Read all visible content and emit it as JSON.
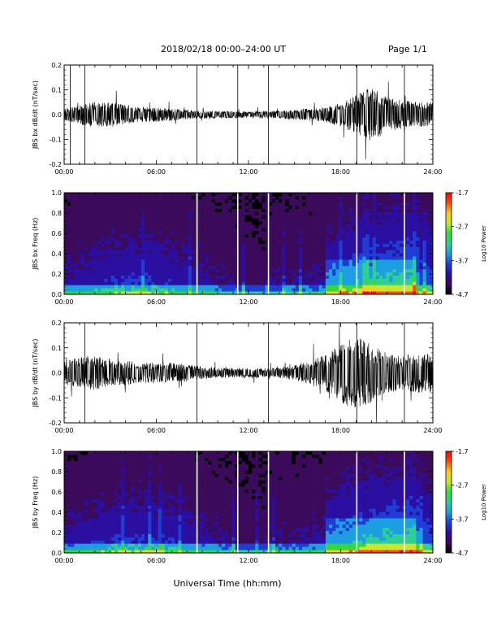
{
  "header": {
    "title": "2018/02/18  00:00–24:00 UT",
    "page": "Page 1/1"
  },
  "xaxis_title": "Universal Time (hh:mm)",
  "colors": {
    "trace": "#000000",
    "gap_lines": "#ffffff",
    "palette": [
      "#000000",
      "#3c0a5a",
      "#2a0fa0",
      "#1f3dd6",
      "#1d9ee0",
      "#2fcf96",
      "#34d83d",
      "#c8e62c",
      "#f5cc1f",
      "#ff4a10",
      "#ff0000"
    ]
  },
  "chart_data": [
    {
      "type": "line",
      "ylabel": "JBS bx dB/dt (nT/sec)",
      "xlim": [
        0,
        24
      ],
      "ylim": [
        -0.2,
        0.2
      ],
      "xticks": [
        "00:00",
        "06:00",
        "12:00",
        "18:00",
        "24:00"
      ],
      "yticks": [
        "-0.2",
        "-0.1",
        "0.0",
        "0.1",
        "0.2"
      ],
      "spikes_hours": [
        0.4,
        1.35,
        8.65,
        11.3,
        13.3,
        19.05,
        22.15
      ],
      "envelope": {
        "x": [
          0,
          1,
          2,
          3,
          4,
          5,
          6,
          7,
          8,
          9,
          10,
          11,
          12,
          13,
          14,
          15,
          16,
          17,
          18,
          19,
          20,
          21,
          22,
          23,
          24
        ],
        "amplitude": [
          0.022,
          0.04,
          0.05,
          0.05,
          0.04,
          0.03,
          0.03,
          0.025,
          0.02,
          0.015,
          0.015,
          0.015,
          0.012,
          0.015,
          0.015,
          0.02,
          0.025,
          0.03,
          0.05,
          0.08,
          0.11,
          0.07,
          0.06,
          0.05,
          0.05
        ]
      }
    },
    {
      "type": "heatmap",
      "ylabel": "JBS bx Freq (Hz)",
      "xlim": [
        0,
        24
      ],
      "ylim": [
        0,
        1.0
      ],
      "xticks": [
        "00:00",
        "06:00",
        "12:00",
        "18:00",
        "24:00"
      ],
      "yticks": [
        "0.0",
        "0.2",
        "0.4",
        "0.6",
        "0.8",
        "1.0"
      ],
      "colorbar": {
        "label": "Log10 Power",
        "ticks": [
          "-1.7",
          "-2.7",
          "-3.7",
          "-4.7"
        ],
        "range": [
          -4.7,
          -1.7
        ]
      },
      "gaps_hours": [
        8.65,
        11.3,
        13.3,
        19.05,
        22.15
      ]
    },
    {
      "type": "line",
      "ylabel": "JBS by dB/dt (nT/sec)",
      "xlim": [
        0,
        24
      ],
      "ylim": [
        -0.2,
        0.2
      ],
      "xticks": [
        "00:00",
        "06:00",
        "12:00",
        "18:00",
        "24:00"
      ],
      "yticks": [
        "-0.2",
        "-0.1",
        "0.0",
        "0.1",
        "0.2"
      ],
      "spikes_hours": [
        1.35,
        8.65,
        13.3,
        19.05,
        22.15
      ],
      "envelope": {
        "x": [
          0,
          1,
          2,
          3,
          4,
          5,
          6,
          7,
          8,
          9,
          10,
          11,
          12,
          13,
          14,
          15,
          16,
          17,
          18,
          19,
          20,
          21,
          22,
          23,
          24
        ],
        "amplitude": [
          0.05,
          0.06,
          0.07,
          0.05,
          0.05,
          0.04,
          0.04,
          0.04,
          0.035,
          0.025,
          0.02,
          0.02,
          0.02,
          0.02,
          0.02,
          0.03,
          0.05,
          0.07,
          0.12,
          0.15,
          0.12,
          0.08,
          0.07,
          0.08,
          0.08
        ]
      }
    },
    {
      "type": "heatmap",
      "ylabel": "JBS by Freq (Hz)",
      "xlim": [
        0,
        24
      ],
      "ylim": [
        0,
        1.0
      ],
      "xticks": [
        "00:00",
        "06:00",
        "12:00",
        "18:00",
        "24:00"
      ],
      "yticks": [
        "0.0",
        "0.2",
        "0.4",
        "0.6",
        "0.8",
        "1.0"
      ],
      "colorbar": {
        "label": "Log10 Power",
        "ticks": [
          "-1.7",
          "-2.7",
          "-3.7",
          "-4.7"
        ],
        "range": [
          -4.7,
          -1.7
        ]
      },
      "gaps_hours": [
        8.65,
        11.3,
        13.3,
        19.05,
        22.15
      ]
    }
  ]
}
